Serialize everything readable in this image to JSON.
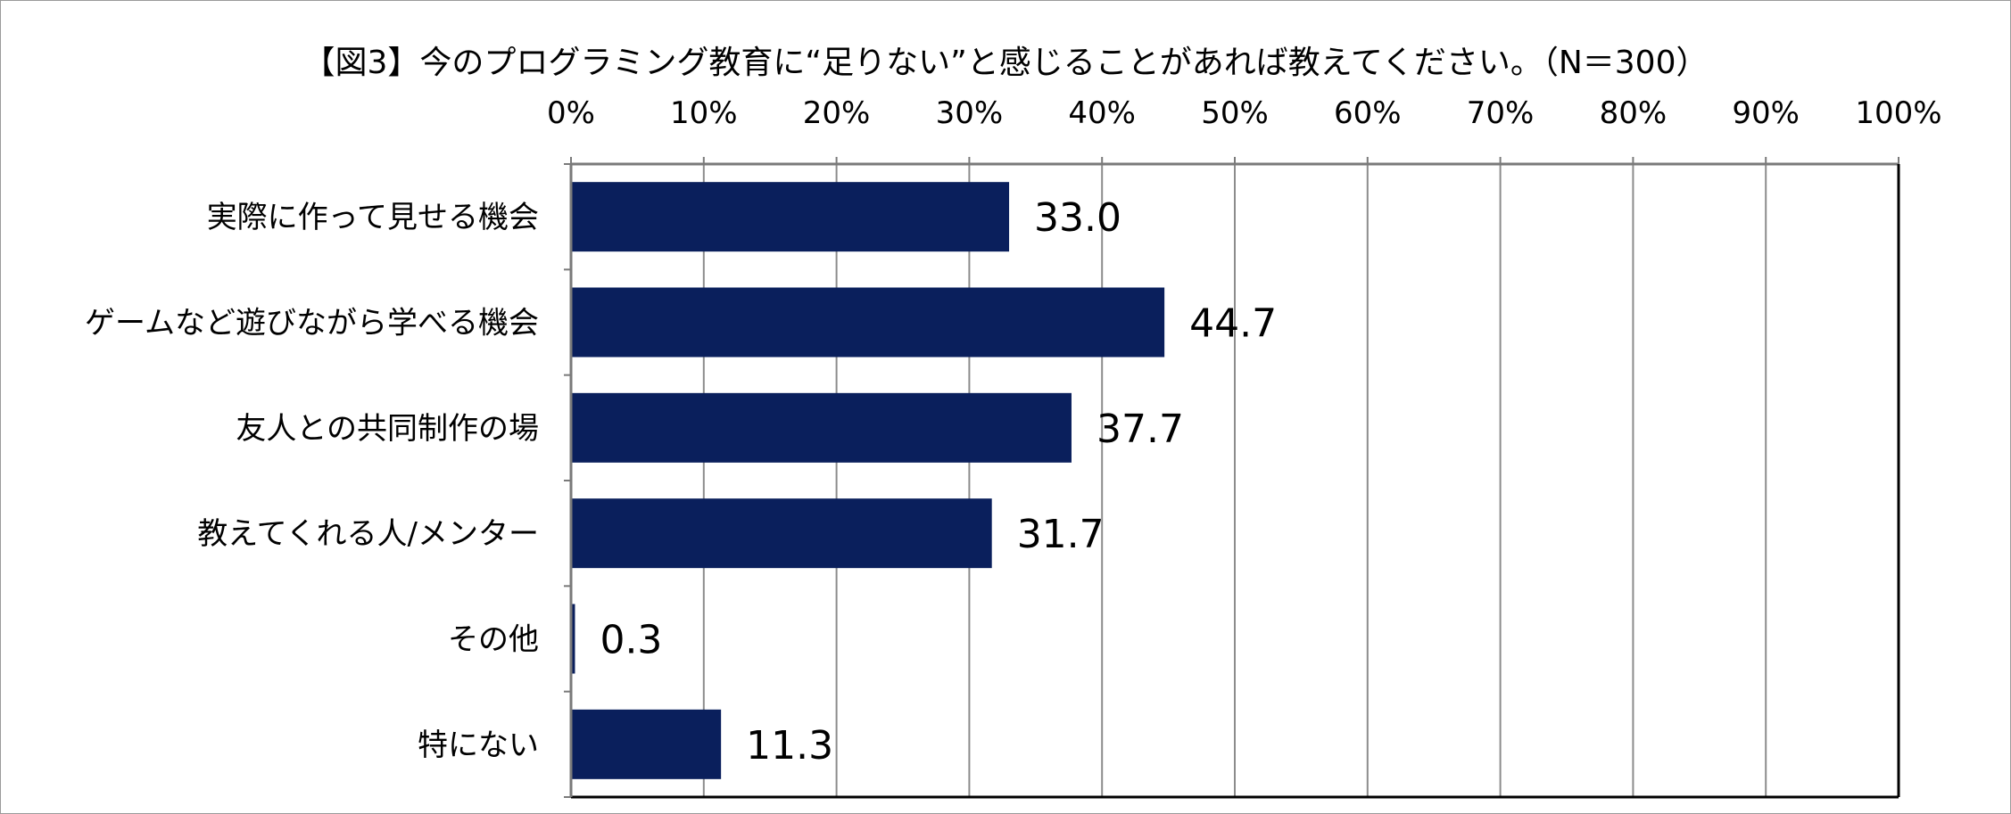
{
  "chart_data": {
    "type": "bar",
    "orientation": "horizontal",
    "title": "【図3】今のプログラミング教育に“足りない”と感じることがあれば教えてください。（N＝300）",
    "xlim": [
      0,
      100
    ],
    "x_ticks": [
      "0%",
      "10%",
      "20%",
      "30%",
      "40%",
      "50%",
      "60%",
      "70%",
      "80%",
      "90%",
      "100%"
    ],
    "x_tick_values": [
      0,
      10,
      20,
      30,
      40,
      50,
      60,
      70,
      80,
      90,
      100
    ],
    "x_axis_position": "top",
    "grid": true,
    "categories": [
      "実際に作って見せる機会",
      "ゲームなど遊びながら学べる機会",
      "友人との共同制作の場",
      "教えてくれる人/メンター",
      "その他",
      "特にない"
    ],
    "values": [
      33.0,
      44.7,
      37.7,
      31.7,
      0.3,
      11.3
    ],
    "value_labels": [
      "33.0",
      "44.7",
      "37.7",
      "31.7",
      "0.3",
      "11.3"
    ],
    "bar_color": "#0a1f5c",
    "grid_color": "#8c8c8c"
  }
}
